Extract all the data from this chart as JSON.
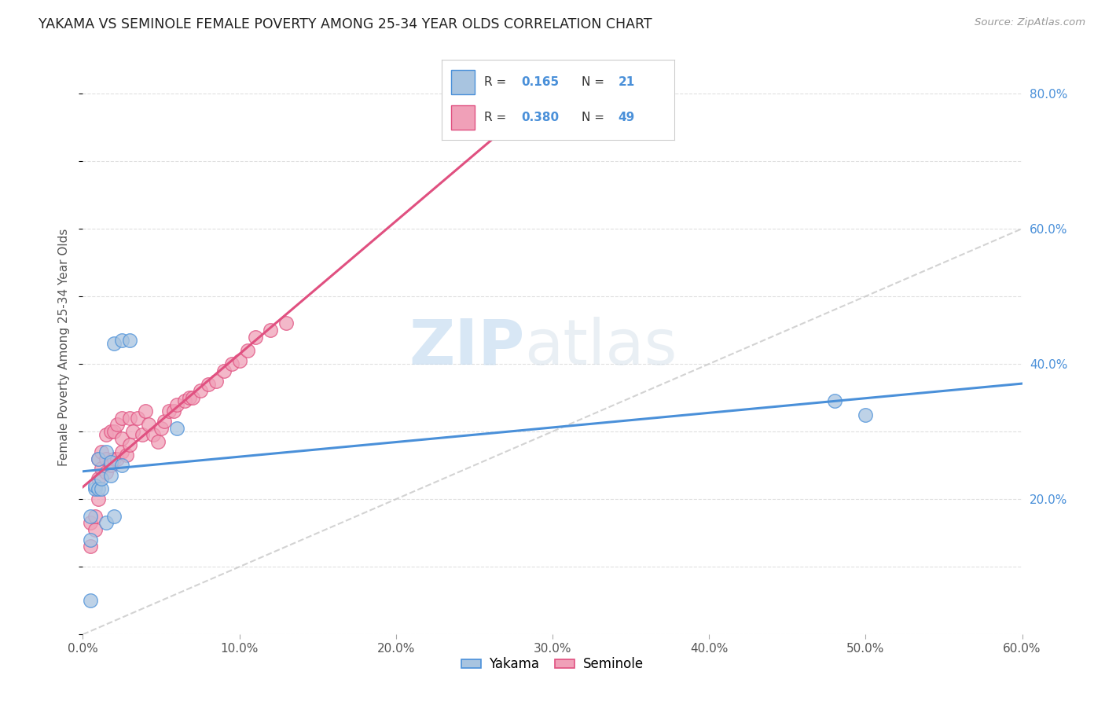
{
  "title": "YAKAMA VS SEMINOLE FEMALE POVERTY AMONG 25-34 YEAR OLDS CORRELATION CHART",
  "source_text": "Source: ZipAtlas.com",
  "ylabel": "Female Poverty Among 25-34 Year Olds",
  "xlim": [
    0.0,
    0.6
  ],
  "ylim": [
    0.0,
    0.85
  ],
  "xtick_labels": [
    "0.0%",
    "10.0%",
    "20.0%",
    "30.0%",
    "40.0%",
    "50.0%",
    "60.0%"
  ],
  "xtick_vals": [
    0.0,
    0.1,
    0.2,
    0.3,
    0.4,
    0.5,
    0.6
  ],
  "ytick_labels_right": [
    "20.0%",
    "40.0%",
    "60.0%",
    "80.0%"
  ],
  "ytick_vals_right": [
    0.2,
    0.4,
    0.6,
    0.8
  ],
  "legend_r_yakama": "0.165",
  "legend_n_yakama": "21",
  "legend_r_seminole": "0.380",
  "legend_n_seminole": "49",
  "yakama_color": "#a8c4e0",
  "seminole_color": "#f0a0b8",
  "yakama_line_color": "#4a90d9",
  "seminole_line_color": "#e05080",
  "diagonal_color": "#c8c8c8",
  "background_color": "#ffffff",
  "watermark_zip": "ZIP",
  "watermark_atlas": "atlas",
  "scatter_alpha": 0.75,
  "scatter_size": 160,
  "yakama_x": [
    0.005,
    0.005,
    0.005,
    0.008,
    0.008,
    0.01,
    0.01,
    0.012,
    0.012,
    0.015,
    0.015,
    0.018,
    0.018,
    0.02,
    0.02,
    0.025,
    0.025,
    0.03,
    0.06,
    0.48,
    0.5
  ],
  "yakama_y": [
    0.05,
    0.14,
    0.175,
    0.215,
    0.22,
    0.215,
    0.26,
    0.215,
    0.23,
    0.27,
    0.165,
    0.235,
    0.255,
    0.175,
    0.43,
    0.435,
    0.25,
    0.435,
    0.305,
    0.345,
    0.325
  ],
  "seminole_x": [
    0.005,
    0.005,
    0.008,
    0.008,
    0.01,
    0.01,
    0.01,
    0.012,
    0.012,
    0.015,
    0.015,
    0.015,
    0.018,
    0.018,
    0.02,
    0.02,
    0.022,
    0.022,
    0.025,
    0.025,
    0.025,
    0.028,
    0.03,
    0.03,
    0.032,
    0.035,
    0.038,
    0.04,
    0.042,
    0.045,
    0.048,
    0.05,
    0.052,
    0.055,
    0.058,
    0.06,
    0.065,
    0.068,
    0.07,
    0.075,
    0.08,
    0.085,
    0.09,
    0.095,
    0.1,
    0.105,
    0.11,
    0.12,
    0.13
  ],
  "seminole_y": [
    0.13,
    0.165,
    0.155,
    0.175,
    0.2,
    0.23,
    0.26,
    0.245,
    0.27,
    0.24,
    0.26,
    0.295,
    0.25,
    0.3,
    0.26,
    0.3,
    0.26,
    0.31,
    0.27,
    0.29,
    0.32,
    0.265,
    0.28,
    0.32,
    0.3,
    0.32,
    0.295,
    0.33,
    0.31,
    0.295,
    0.285,
    0.305,
    0.315,
    0.33,
    0.33,
    0.34,
    0.345,
    0.35,
    0.35,
    0.36,
    0.37,
    0.375,
    0.39,
    0.4,
    0.405,
    0.42,
    0.44,
    0.45,
    0.46
  ]
}
